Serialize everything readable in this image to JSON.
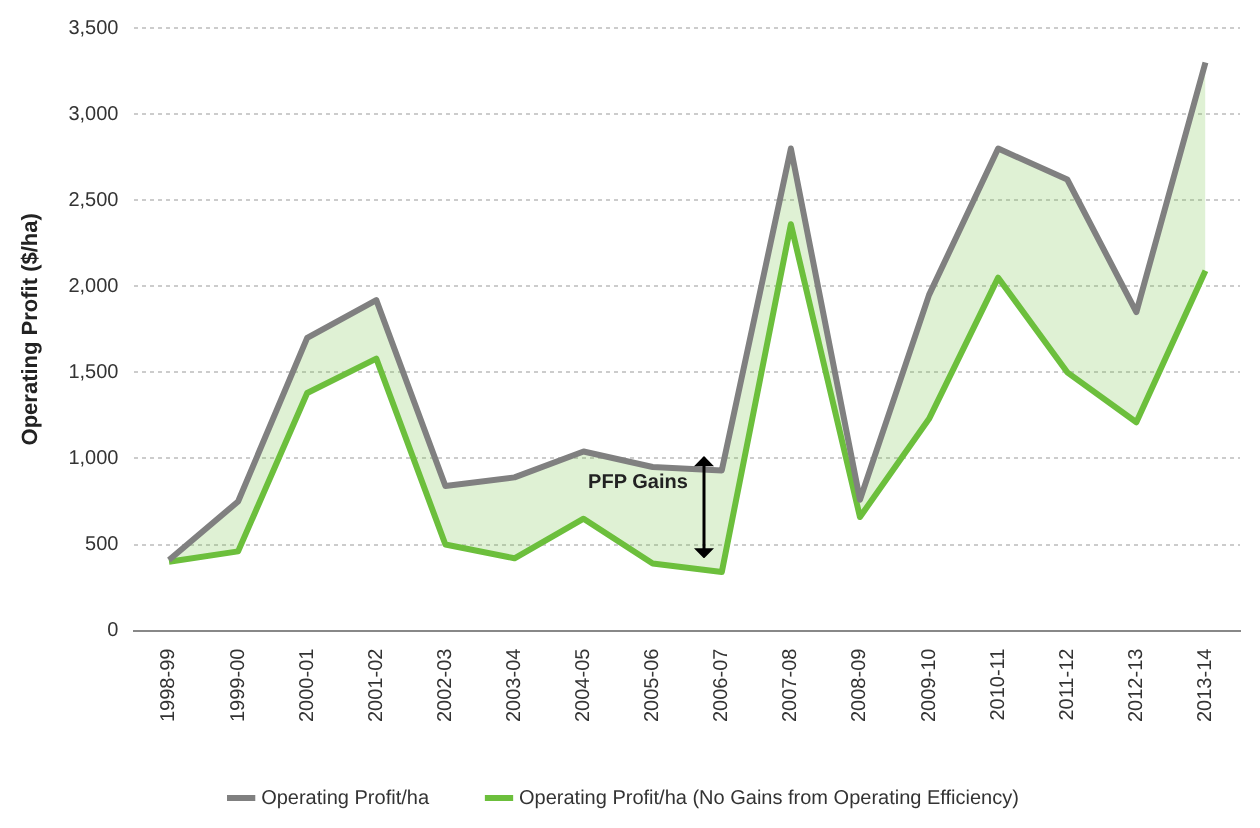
{
  "chart_data": {
    "type": "line",
    "ylabel": "Operating Profit ($/ha)",
    "categories": [
      "1998-99",
      "1999-00",
      "2000-01",
      "2001-02",
      "2002-03",
      "2003-04",
      "2004-05",
      "2005-06",
      "2006-07",
      "2007-08",
      "2008-09",
      "2009-10",
      "2010-11",
      "2011-12",
      "2012-13",
      "2013-14"
    ],
    "series": [
      {
        "name": "Operating Profit/ha",
        "color": "#808080",
        "values": [
          410,
          750,
          1700,
          1920,
          840,
          890,
          1040,
          950,
          930,
          2800,
          760,
          1950,
          2800,
          2620,
          1850,
          3300
        ]
      },
      {
        "name": "Operating Profit/ha (No Gains from Operating Efficiency)",
        "color": "#6cbf3c",
        "values": [
          400,
          460,
          1380,
          1580,
          500,
          420,
          650,
          390,
          340,
          2360,
          660,
          1230,
          2050,
          1500,
          1210,
          2090
        ],
        "lower": [
          400,
          460,
          1380,
          1580,
          500,
          420,
          650,
          390,
          340,
          2360,
          660,
          1230,
          2050,
          1500,
          1210,
          2090
        ],
        "upper": [
          410,
          750,
          1700,
          1920,
          840,
          890,
          1040,
          950,
          930,
          2800,
          760,
          1950,
          2800,
          2620,
          1850,
          3300
        ]
      }
    ],
    "ylim": [
      0,
      3500
    ],
    "yticks": [
      {
        "value": 0,
        "label": "0"
      },
      {
        "value": 500,
        "label": "500"
      },
      {
        "value": 1000,
        "label": "1,000"
      },
      {
        "value": 1500,
        "label": "1,500"
      },
      {
        "value": 2000,
        "label": "2,000"
      },
      {
        "value": 2500,
        "label": "2,500"
      },
      {
        "value": 3000,
        "label": "3,000"
      },
      {
        "value": 3500,
        "label": "3,500"
      }
    ],
    "grid": "y",
    "legend": "bottom",
    "marker": "none",
    "line_style": "solid",
    "annotations": [
      "PFP Gains"
    ]
  }
}
